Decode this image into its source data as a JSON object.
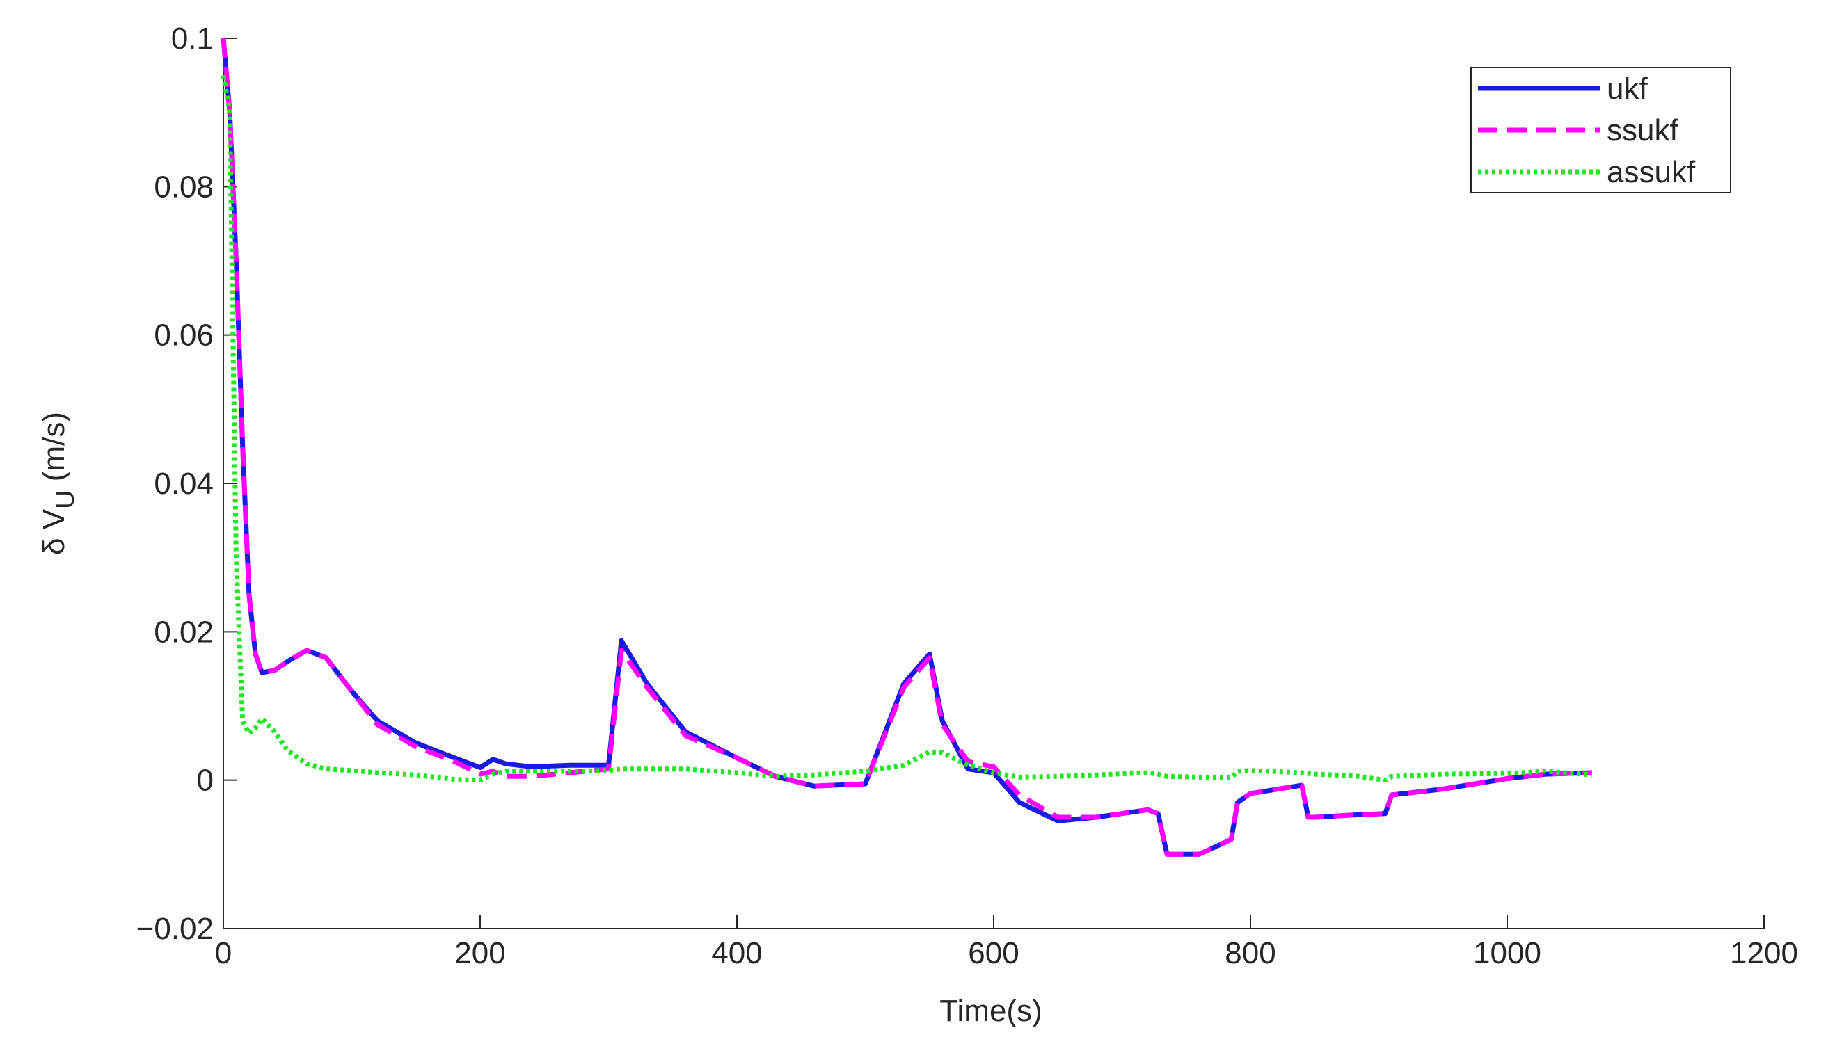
{
  "chart_data": {
    "type": "line",
    "xlabel": "Time(s)",
    "ylabel": [
      "δ V",
      "U",
      " (m/s)"
    ],
    "x": [
      0,
      5,
      10,
      15,
      20,
      25,
      30,
      40,
      50,
      65,
      80,
      100,
      120,
      150,
      180,
      200,
      210,
      220,
      240,
      270,
      300,
      310,
      330,
      360,
      400,
      430,
      460,
      500,
      530,
      550,
      560,
      580,
      600,
      620,
      650,
      680,
      720,
      728,
      735,
      760,
      785,
      790,
      800,
      840,
      845,
      850,
      880,
      905,
      910,
      950,
      1000,
      1030,
      1066
    ],
    "series": [
      {
        "name": "ukf",
        "color": "#1a1ae6",
        "linestyle": "solid",
        "values": [
          0.1,
          0.09,
          0.07,
          0.045,
          0.025,
          0.017,
          0.0145,
          0.0148,
          0.016,
          0.0175,
          0.0165,
          0.012,
          0.008,
          0.005,
          0.003,
          0.0017,
          0.0028,
          0.0022,
          0.0018,
          0.002,
          0.002,
          0.0188,
          0.013,
          0.0065,
          0.003,
          0.0005,
          -0.0008,
          -0.0005,
          0.013,
          0.017,
          0.008,
          0.0015,
          0.001,
          -0.003,
          -0.0055,
          -0.005,
          -0.004,
          -0.0045,
          -0.01,
          -0.01,
          -0.008,
          -0.003,
          -0.0018,
          -0.0007,
          -0.005,
          -0.005,
          -0.0047,
          -0.0045,
          -0.002,
          -0.0012,
          0.0002,
          0.0008,
          0.001
        ]
      },
      {
        "name": "ssukf",
        "color": "#ff00ff",
        "linestyle": "dashed",
        "values": [
          0.1,
          0.09,
          0.07,
          0.045,
          0.025,
          0.017,
          0.0145,
          0.0148,
          0.016,
          0.0175,
          0.0165,
          0.012,
          0.0075,
          0.0045,
          0.0025,
          0.0008,
          0.0012,
          0.0005,
          0.0005,
          0.001,
          0.0015,
          0.0175,
          0.0125,
          0.006,
          0.003,
          0.0005,
          -0.0008,
          -0.0005,
          0.0125,
          0.0165,
          0.0075,
          0.0025,
          0.0018,
          -0.002,
          -0.005,
          -0.005,
          -0.004,
          -0.0045,
          -0.01,
          -0.01,
          -0.008,
          -0.003,
          -0.0018,
          -0.0007,
          -0.005,
          -0.005,
          -0.0047,
          -0.0045,
          -0.002,
          -0.0012,
          0.0002,
          0.0008,
          0.001
        ]
      },
      {
        "name": "assukf",
        "color": "#22e622",
        "linestyle": "dotted",
        "values": [
          0.095,
          0.09,
          0.03,
          0.008,
          0.0063,
          0.007,
          0.0083,
          0.0065,
          0.004,
          0.0022,
          0.0015,
          0.0013,
          0.001,
          0.0007,
          0.0001,
          0,
          0.0008,
          0.0012,
          0.0012,
          0.0012,
          0.0013,
          0.0015,
          0.0015,
          0.0015,
          0.001,
          0.0005,
          0.0007,
          0.0012,
          0.002,
          0.0038,
          0.0037,
          0.002,
          0.001,
          0.0004,
          0.0005,
          0.0007,
          0.001,
          0.0008,
          0.0005,
          0.0004,
          0.0003,
          0.0012,
          0.0013,
          0.001,
          0.0009,
          0.0008,
          0.0006,
          0,
          0.0005,
          0.0008,
          0.0009,
          0.0012,
          0.0007
        ]
      }
    ],
    "xlim": [
      0,
      1200
    ],
    "xticks": [
      0,
      200,
      400,
      600,
      800,
      1000,
      1200
    ],
    "ylim": [
      -0.02,
      0.1
    ],
    "yticks": [
      {
        "value": -0.02,
        "label": "−0.02"
      },
      0,
      0.02,
      0.04,
      0.06,
      0.08,
      0.1
    ],
    "grid": false,
    "legend": "upper right"
  }
}
